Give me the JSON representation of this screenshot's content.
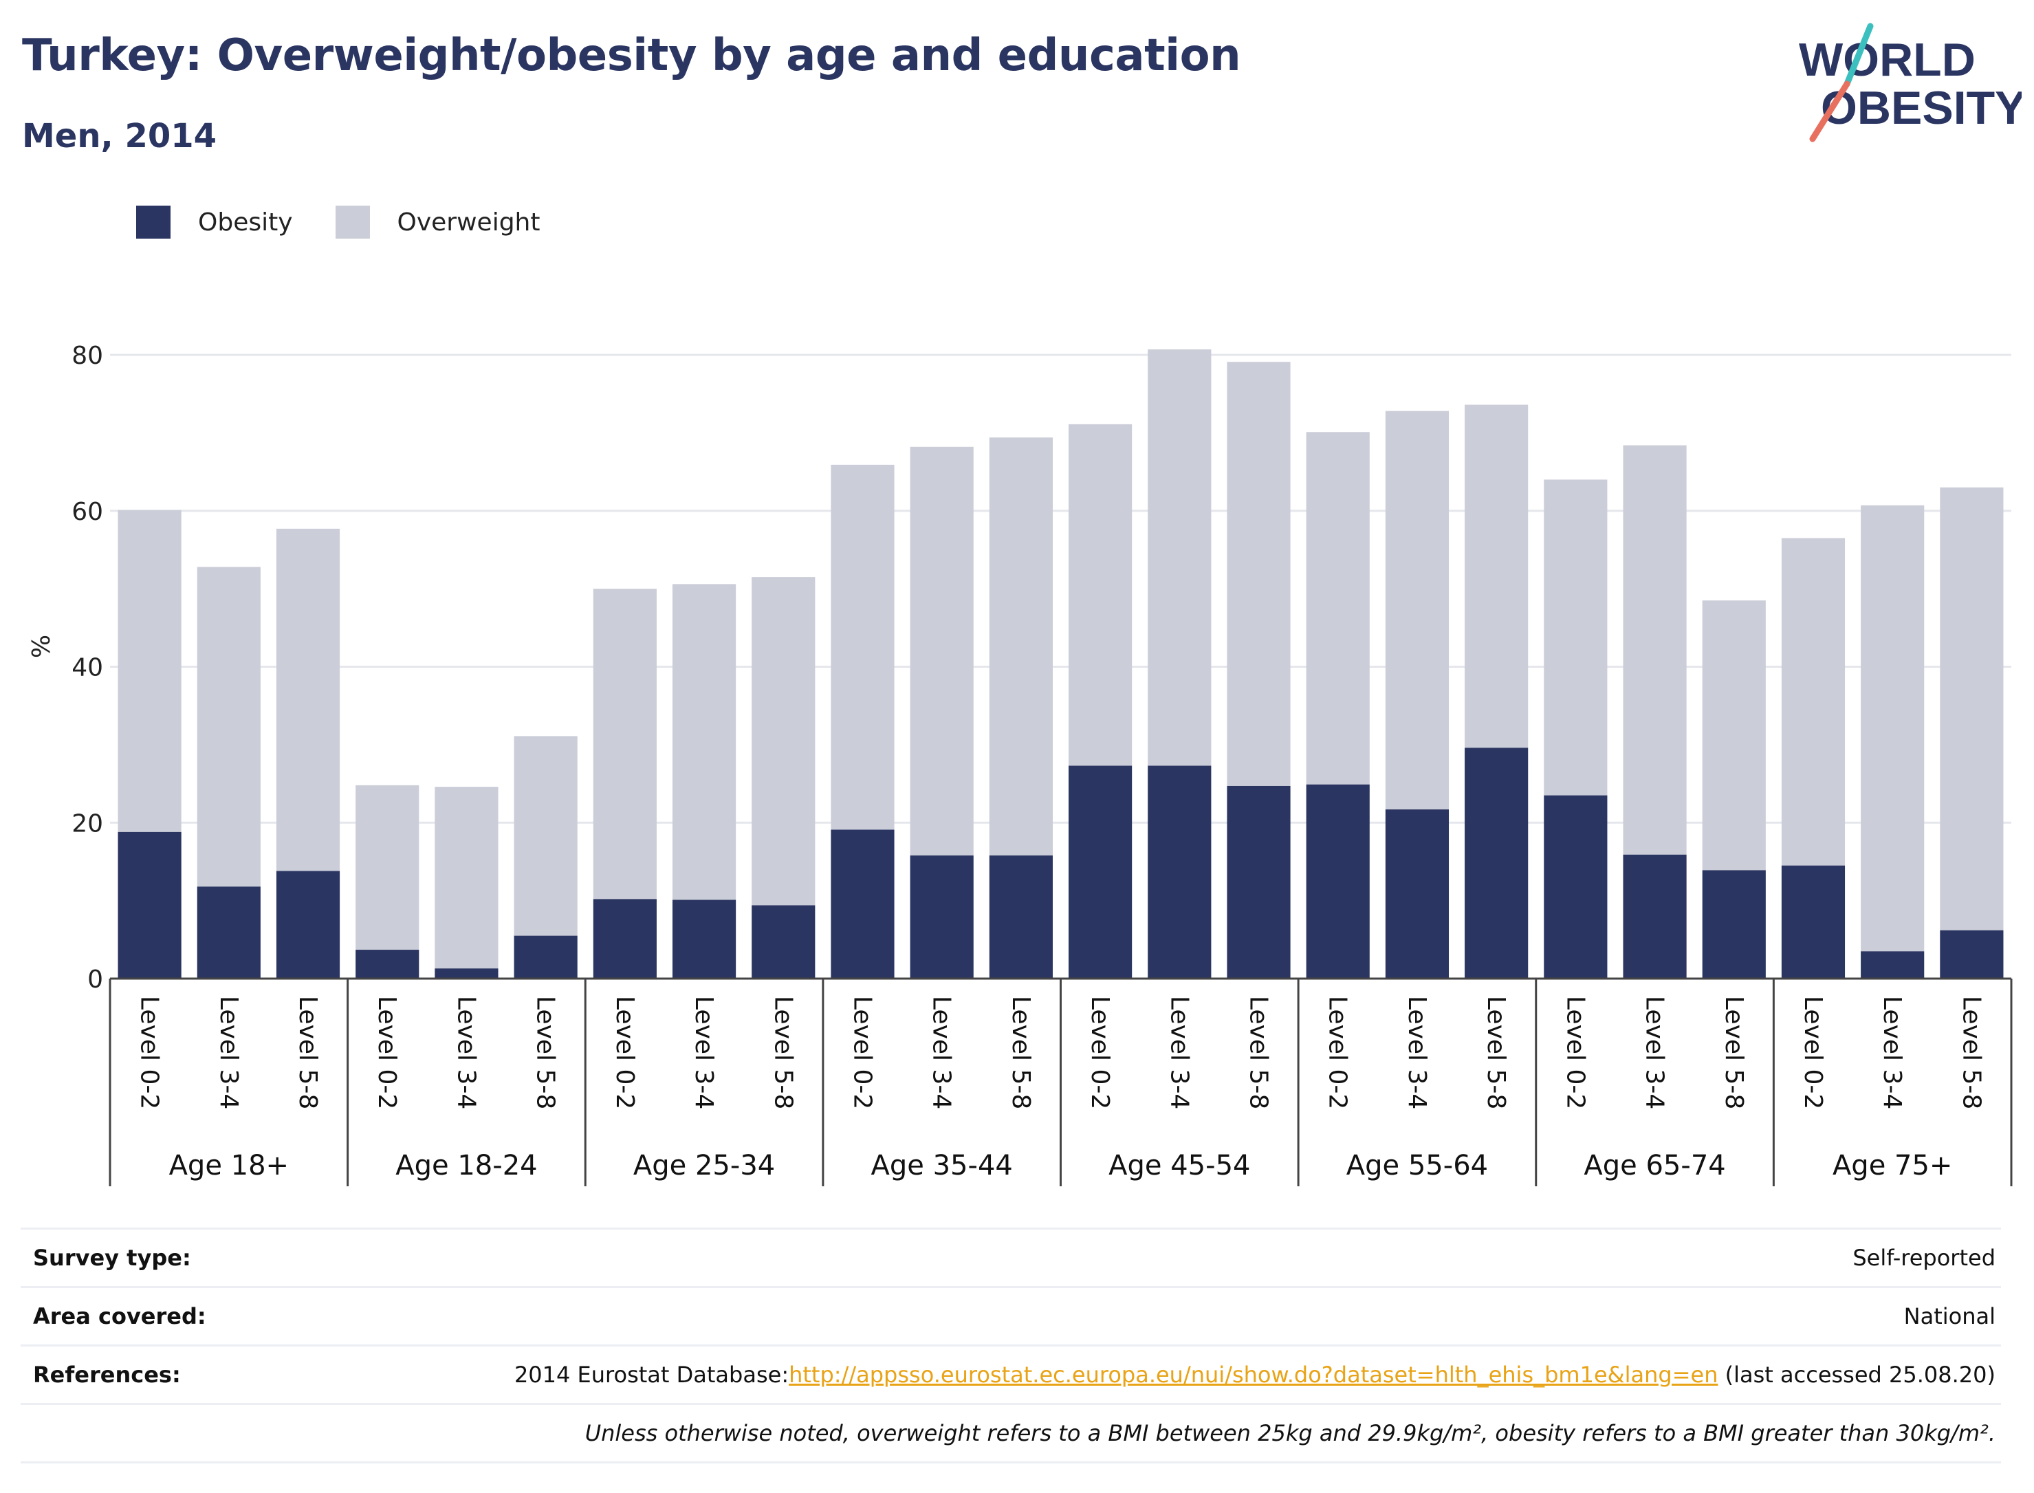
{
  "title": "Turkey: Overweight/obesity by age and education",
  "subtitle": "Men, 2014",
  "logo": {
    "line1": "WORLD",
    "line2": "OBESITY"
  },
  "colors": {
    "obesity": "#2a3561",
    "overweight": "#cbcdd8",
    "link": "#e8a316",
    "title": "#2a3561"
  },
  "chart_data": {
    "type": "bar",
    "stacked": true,
    "ylabel": "%",
    "ylim": [
      0,
      80
    ],
    "yticks": [
      0,
      20,
      40,
      60,
      80
    ],
    "grid": true,
    "legend_position": "top-left",
    "groups": [
      "Age 18+",
      "Age 18-24",
      "Age 25-34",
      "Age 35-44",
      "Age 45-54",
      "Age 55-64",
      "Age 65-74",
      "Age 75+"
    ],
    "subcategories": [
      "Level 0-2",
      "Level 3-4",
      "Level 5-8"
    ],
    "series": [
      {
        "name": "Obesity",
        "values": [
          18.8,
          11.8,
          13.8,
          3.7,
          1.3,
          5.5,
          10.2,
          10.1,
          9.4,
          19.1,
          15.8,
          15.8,
          27.3,
          27.3,
          24.7,
          24.9,
          21.7,
          29.6,
          23.5,
          15.9,
          13.9,
          14.5,
          3.5,
          6.2
        ]
      },
      {
        "name": "Overweight",
        "values": [
          41.3,
          41.0,
          43.9,
          21.1,
          23.3,
          25.6,
          39.8,
          40.5,
          42.1,
          46.8,
          52.4,
          53.6,
          43.8,
          53.4,
          54.4,
          45.2,
          51.1,
          44.0,
          40.5,
          52.5,
          34.6,
          42.0,
          57.2,
          56.8
        ]
      }
    ]
  },
  "legend": {
    "items": [
      "Obesity",
      "Overweight"
    ]
  },
  "info": {
    "survey_label": "Survey type:",
    "survey_value": "Self-reported",
    "area_label": "Area covered:",
    "area_value": "National",
    "refs_label": "References:",
    "refs_prefix": "2014 Eurostat Database:",
    "refs_link": "http://appsso.eurostat.ec.europa.eu/nui/show.do?dataset=hlth_ehis_bm1e&lang=en",
    "refs_suffix": " (last accessed 25.08.20)",
    "note": "Unless otherwise noted, overweight refers to a BMI between 25kg and 29.9kg/m², obesity refers to a BMI greater than 30kg/m²."
  }
}
